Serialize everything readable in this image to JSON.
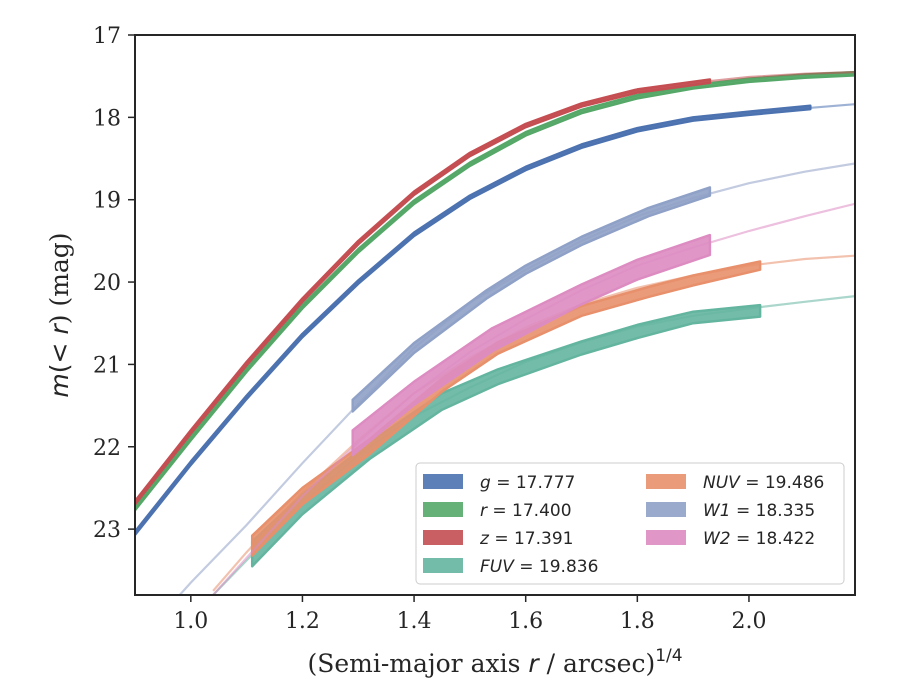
{
  "chart_data": {
    "type": "line",
    "xlabel_prefix": "(Semi-major axis ",
    "xlabel_var": "r",
    "xlabel_suffix": " / arcsec)",
    "xlabel_sup": "1/4",
    "ylabel_prefix": "m",
    "ylabel_mid": "(< ",
    "ylabel_var": "r",
    "ylabel_suffix": ") (mag)",
    "xlim": [
      0.9,
      2.19
    ],
    "ylim": [
      23.8,
      17.0
    ],
    "y_inverted": true,
    "xticks": [
      1.0,
      1.2,
      1.4,
      1.6,
      1.8,
      2.0
    ],
    "xtick_labels": [
      "1.0",
      "1.2",
      "1.4",
      "1.6",
      "1.8",
      "2.0"
    ],
    "yticks": [
      17,
      18,
      19,
      20,
      21,
      22,
      23
    ],
    "ytick_labels": [
      "17",
      "18",
      "19",
      "20",
      "21",
      "22",
      "23"
    ],
    "grid": false,
    "legend_position": "lower-right",
    "legend_columns": 2,
    "series": [
      {
        "band": "g",
        "value": "17.777",
        "color": "#4c72b0",
        "model_x": [
          0.9,
          1.0,
          1.1,
          1.2,
          1.3,
          1.4,
          1.5,
          1.6,
          1.7,
          1.8,
          1.9,
          2.0,
          2.1,
          2.19
        ],
        "model_y": [
          23.05,
          22.2,
          21.4,
          20.65,
          20.0,
          19.42,
          18.97,
          18.62,
          18.35,
          18.15,
          18.02,
          17.95,
          17.89,
          17.84
        ],
        "data_x": [
          0.9,
          1.0,
          1.1,
          1.2,
          1.3,
          1.4,
          1.5,
          1.6,
          1.7,
          1.8,
          1.9,
          2.0,
          2.11
        ],
        "data_y": [
          23.05,
          22.2,
          21.4,
          20.65,
          20.0,
          19.42,
          18.97,
          18.62,
          18.35,
          18.15,
          18.02,
          17.95,
          17.88
        ],
        "data_err": [
          0.02,
          0.02,
          0.02,
          0.02,
          0.02,
          0.02,
          0.02,
          0.02,
          0.02,
          0.02,
          0.02,
          0.02,
          0.02
        ]
      },
      {
        "band": "r",
        "value": "17.400",
        "color": "#55a868",
        "model_x": [
          0.9,
          1.0,
          1.1,
          1.2,
          1.3,
          1.4,
          1.5,
          1.6,
          1.7,
          1.8,
          1.9,
          2.0,
          2.1,
          2.19
        ],
        "model_y": [
          22.75,
          21.9,
          21.07,
          20.3,
          19.62,
          19.03,
          18.57,
          18.2,
          17.93,
          17.75,
          17.63,
          17.55,
          17.5,
          17.47
        ],
        "data_x": [
          0.9,
          1.0,
          1.1,
          1.2,
          1.3,
          1.4,
          1.5,
          1.6,
          1.7,
          1.8,
          1.9,
          2.0,
          2.1,
          2.19
        ],
        "data_y": [
          22.75,
          21.9,
          21.07,
          20.3,
          19.62,
          19.03,
          18.57,
          18.2,
          17.93,
          17.75,
          17.63,
          17.55,
          17.5,
          17.47
        ],
        "data_err": [
          0.02,
          0.02,
          0.02,
          0.02,
          0.02,
          0.02,
          0.02,
          0.02,
          0.02,
          0.02,
          0.02,
          0.02,
          0.02,
          0.02
        ]
      },
      {
        "band": "z",
        "value": "17.391",
        "color": "#c44e52",
        "model_x": [
          0.9,
          1.0,
          1.1,
          1.2,
          1.3,
          1.4,
          1.5,
          1.6,
          1.7,
          1.8,
          1.9,
          2.0,
          2.1,
          2.19
        ],
        "model_y": [
          22.68,
          21.82,
          20.99,
          20.22,
          19.52,
          18.92,
          18.45,
          18.1,
          17.85,
          17.68,
          17.58,
          17.51,
          17.47,
          17.45
        ],
        "data_x": [
          0.9,
          1.0,
          1.1,
          1.2,
          1.3,
          1.4,
          1.5,
          1.6,
          1.7,
          1.8,
          1.93
        ],
        "data_y": [
          22.68,
          21.82,
          20.99,
          20.22,
          19.52,
          18.92,
          18.45,
          18.1,
          17.85,
          17.68,
          17.56
        ],
        "data_err": [
          0.02,
          0.02,
          0.02,
          0.02,
          0.02,
          0.02,
          0.02,
          0.02,
          0.02,
          0.02,
          0.02
        ]
      },
      {
        "band": "FUV",
        "value": "19.836",
        "color": "#64b5a0",
        "model_x": [
          1.04,
          1.1,
          1.2,
          1.3,
          1.4,
          1.5,
          1.6,
          1.7,
          1.8,
          1.9,
          2.0,
          2.1,
          2.19
        ],
        "model_y": [
          23.8,
          23.38,
          22.7,
          22.1,
          21.63,
          21.28,
          20.97,
          20.73,
          20.54,
          20.41,
          20.32,
          20.24,
          20.17
        ],
        "data_x": [
          1.11,
          1.2,
          1.32,
          1.45,
          1.55,
          1.7,
          1.8,
          1.9,
          2.02
        ],
        "data_y": [
          23.3,
          22.7,
          22.05,
          21.45,
          21.15,
          20.8,
          20.6,
          20.43,
          20.35
        ],
        "data_err": [
          0.15,
          0.12,
          0.1,
          0.1,
          0.09,
          0.08,
          0.08,
          0.07,
          0.07
        ]
      },
      {
        "band": "NUV",
        "value": "19.486",
        "color": "#e8906b",
        "model_x": [
          1.04,
          1.1,
          1.2,
          1.3,
          1.4,
          1.5,
          1.6,
          1.7,
          1.8,
          1.9,
          2.0,
          2.1,
          2.19
        ],
        "model_y": [
          23.75,
          23.28,
          22.55,
          21.92,
          21.35,
          20.92,
          20.55,
          20.27,
          20.07,
          19.92,
          19.8,
          19.72,
          19.68
        ],
        "data_x": [
          1.11,
          1.2,
          1.32,
          1.45,
          1.55,
          1.7,
          1.82,
          1.9,
          2.02
        ],
        "data_y": [
          23.2,
          22.6,
          22.0,
          21.25,
          20.8,
          20.35,
          20.12,
          19.98,
          19.8
        ],
        "data_err": [
          0.12,
          0.1,
          0.09,
          0.08,
          0.07,
          0.06,
          0.06,
          0.06,
          0.05
        ]
      },
      {
        "band": "W1",
        "value": "18.335",
        "color": "#8fa1c7",
        "model_x": [
          0.98,
          1.0,
          1.1,
          1.2,
          1.3,
          1.4,
          1.5,
          1.6,
          1.7,
          1.8,
          1.9,
          2.0,
          2.1,
          2.19
        ],
        "model_y": [
          23.8,
          23.65,
          22.95,
          22.2,
          21.48,
          20.8,
          20.25,
          19.85,
          19.5,
          19.2,
          18.98,
          18.8,
          18.66,
          18.56
        ],
        "data_x": [
          1.29,
          1.4,
          1.53,
          1.6,
          1.7,
          1.82,
          1.93
        ],
        "data_y": [
          21.5,
          20.8,
          20.15,
          19.85,
          19.5,
          19.15,
          18.9
        ],
        "data_err": [
          0.07,
          0.06,
          0.05,
          0.05,
          0.05,
          0.05,
          0.05
        ]
      },
      {
        "band": "W2",
        "value": "18.422",
        "color": "#dd8cc2",
        "model_x": [
          1.04,
          1.1,
          1.2,
          1.3,
          1.4,
          1.5,
          1.6,
          1.7,
          1.8,
          1.9,
          2.0,
          2.1,
          2.19
        ],
        "model_y": [
          23.8,
          23.35,
          22.6,
          21.95,
          21.35,
          20.85,
          20.45,
          20.1,
          19.8,
          19.58,
          19.38,
          19.2,
          19.05
        ],
        "data_x": [
          1.29,
          1.4,
          1.54,
          1.7,
          1.8,
          1.93
        ],
        "data_y": [
          21.95,
          21.35,
          20.7,
          20.15,
          19.85,
          19.55
        ],
        "data_err": [
          0.15,
          0.14,
          0.14,
          0.12,
          0.12,
          0.12
        ]
      }
    ]
  }
}
